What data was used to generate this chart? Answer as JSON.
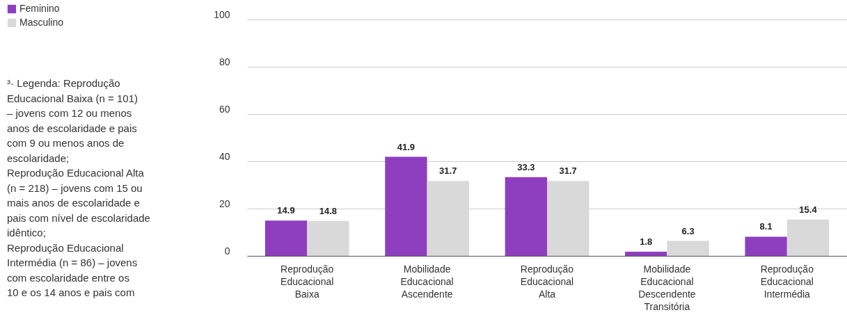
{
  "chart_data": {
    "type": "bar",
    "categories": [
      "Reprodução Educacional Baixa",
      "Mobilidade Educacional Ascendente",
      "Reprodução Educacional Alta",
      "Mobilidade Educacional Descendente Transitória",
      "Reprodução Educacional Intermédia"
    ],
    "series": [
      {
        "name": "Feminino",
        "color": "#8e3fbf",
        "values": [
          14.9,
          41.9,
          33.3,
          1.8,
          8.1
        ]
      },
      {
        "name": "Masculino",
        "color": "#d9d9d9",
        "values": [
          14.8,
          31.7,
          31.7,
          6.3,
          15.4
        ]
      }
    ],
    "ylim": [
      0,
      100
    ],
    "yticks": [
      0,
      20,
      40,
      60,
      80,
      100
    ],
    "grid": "y",
    "legend": "top left",
    "data_labels": true,
    "annotations": [
      "³· Legenda: Reprodução\nEducacional Baixa (n = 101)\n– jovens com 12 ou menos\nanos de escolaridade e pais\ncom 9 ou menos anos de\nescolaridade;\nReprodução Educacional Alta\n(n = 218) – jovens com 15 ou\nmais anos de escolaridade e\npais com nível de escolaridade\nidêntico;\nReprodução Educacional\nIntermédia (n = 86) – jovens\ncom escolaridade entre os\n10 e os 14 anos e pais com"
    ]
  }
}
